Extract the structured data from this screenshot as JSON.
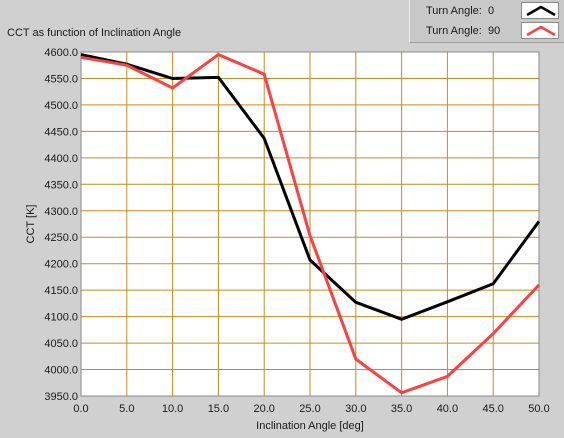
{
  "chart_data": {
    "type": "line",
    "title": "CCT as function of Inclination Angle",
    "xlabel": "Inclination Angle [deg]",
    "ylabel": "CCT [K]",
    "xlim": [
      0,
      50
    ],
    "ylim": [
      3950,
      4600
    ],
    "x_ticks": [
      "0.0",
      "5.0",
      "10.0",
      "15.0",
      "20.0",
      "25.0",
      "30.0",
      "35.0",
      "40.0",
      "45.0",
      "50.0"
    ],
    "y_ticks": [
      "3950.0",
      "4000.0",
      "4050.0",
      "4100.0",
      "4150.0",
      "4200.0",
      "4250.0",
      "4300.0",
      "4350.0",
      "4400.0",
      "4450.0",
      "4500.0",
      "4550.0",
      "4600.0"
    ],
    "grid": true,
    "legend_position": "top-right",
    "series": [
      {
        "name": "Turn Angle:",
        "turn_angle_value": "0",
        "color": "#000000",
        "x": [
          0,
          5,
          10,
          15,
          20,
          25,
          30,
          35,
          40,
          45,
          50
        ],
        "values": [
          4595,
          4577,
          4550,
          4552,
          4437,
          4207,
          4127,
          4095,
          4128,
          4162,
          4280
        ]
      },
      {
        "name": "Turn Angle:",
        "turn_angle_value": "90",
        "color": "#ff4040",
        "x": [
          0,
          5,
          10,
          15,
          20,
          25,
          30,
          35,
          40,
          45,
          50
        ],
        "values": [
          4590,
          4575,
          4532,
          4595,
          4558,
          4253,
          4020,
          3956,
          3987,
          4068,
          4160
        ]
      }
    ]
  },
  "colors": {
    "plot_background": "#ffffff",
    "grid": "#c98a1a",
    "panel": "#d0d0d0"
  },
  "legend": {
    "items": [
      {
        "label": "Turn Angle:",
        "value": "0",
        "icon": "black-line-swatch-icon"
      },
      {
        "label": "Turn Angle:",
        "value": "90",
        "icon": "red-line-swatch-icon"
      }
    ]
  }
}
